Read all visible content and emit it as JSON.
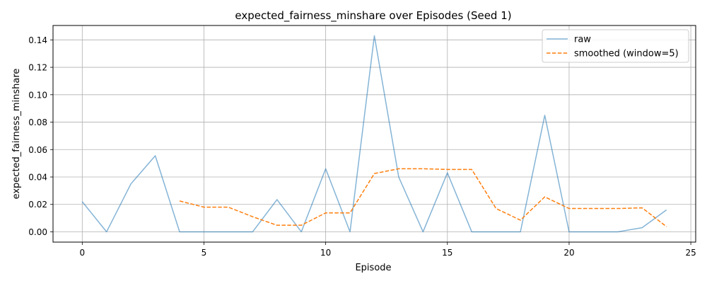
{
  "chart_data": {
    "type": "line",
    "title": "expected_fairness_minshare over Episodes (Seed 1)",
    "xlabel": "Episode",
    "ylabel": "expected_fairness_minshare",
    "xlim": [
      -1.2,
      25.2
    ],
    "ylim": [
      -0.0075,
      0.1505
    ],
    "xticks": [
      0,
      5,
      10,
      15,
      20,
      25
    ],
    "yticks": [
      0.0,
      0.02,
      0.04,
      0.06,
      0.08,
      0.1,
      0.12,
      0.14
    ],
    "xtick_labels": [
      "0",
      "5",
      "10",
      "15",
      "20",
      "25"
    ],
    "ytick_labels": [
      "0.00",
      "0.02",
      "0.04",
      "0.06",
      "0.08",
      "0.10",
      "0.12",
      "0.14"
    ],
    "grid": true,
    "legend_position": "top-right",
    "series": [
      {
        "name": "raw",
        "color": "#1f77b4",
        "style": "solid",
        "x": [
          0,
          1,
          2,
          3,
          4,
          5,
          6,
          7,
          8,
          9,
          10,
          11,
          12,
          13,
          14,
          15,
          16,
          17,
          18,
          19,
          20,
          21,
          22,
          23,
          24
        ],
        "values": [
          0.022,
          0.0,
          0.035,
          0.0555,
          0.0,
          0.0,
          0.0,
          0.0,
          0.0235,
          0.0,
          0.046,
          0.0,
          0.143,
          0.04,
          0.0,
          0.043,
          0.0,
          0.0,
          0.0,
          0.085,
          0.0,
          0.0,
          0.0,
          0.003,
          0.016
        ]
      },
      {
        "name": "smoothed (window=5)",
        "color": "#ff7f0e",
        "style": "dashed",
        "x": [
          4,
          5,
          6,
          7,
          8,
          9,
          10,
          11,
          12,
          13,
          14,
          15,
          16,
          17,
          18,
          19,
          20,
          21,
          22,
          23,
          24
        ],
        "values": [
          0.0225,
          0.018,
          0.018,
          0.011,
          0.0048,
          0.0048,
          0.0138,
          0.0138,
          0.0425,
          0.046,
          0.046,
          0.0455,
          0.0455,
          0.017,
          0.0085,
          0.0255,
          0.017,
          0.017,
          0.017,
          0.0175,
          0.0038
        ]
      }
    ]
  }
}
